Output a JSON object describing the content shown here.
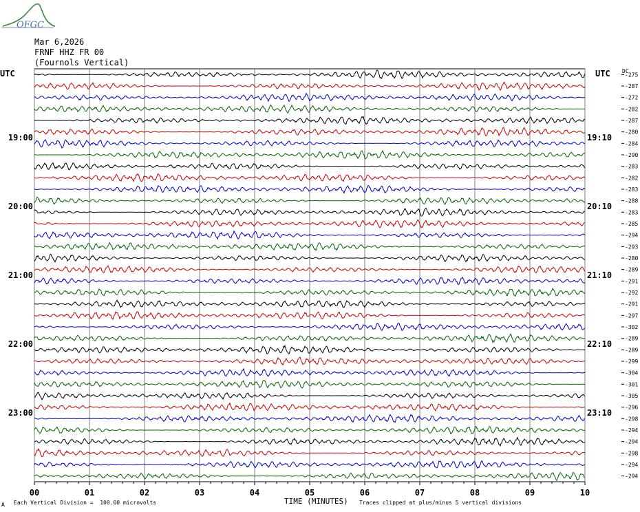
{
  "logo_text": "OFGC",
  "header": {
    "date": "Mar 6,2026",
    "station": "FRNF HHZ FR 00",
    "component": "(Fournols Vertical)"
  },
  "left_axis_label": "UTC",
  "right_axis_label": "UTC",
  "dc_label": "DC",
  "footer": {
    "scale_note": "Each Vertical Division =  100.00 microvolts",
    "xlabel": "TIME (MINUTES)",
    "clip_note": "Traces clipped at plus/minus 5 vertical divisions",
    "corner_mark": "A"
  },
  "colors": {
    "trace_cycle": [
      "#000000",
      "#cc0000",
      "#0000cc",
      "#006600"
    ],
    "grid": "#808080"
  },
  "chart_data": {
    "type": "line",
    "title": "",
    "xlabel": "TIME (MINUTES)",
    "ylabel": "",
    "xlim": [
      0,
      10
    ],
    "x_ticks": [
      "00",
      "01",
      "02",
      "03",
      "04",
      "05",
      "06",
      "07",
      "08",
      "09",
      "10"
    ],
    "row_count": 36,
    "left_hour_labels": [
      {
        "row": 6,
        "label": "19:00"
      },
      {
        "row": 12,
        "label": "20:00"
      },
      {
        "row": 18,
        "label": "21:00"
      },
      {
        "row": 24,
        "label": "22:00"
      },
      {
        "row": 30,
        "label": "23:00"
      }
    ],
    "right_hour_labels": [
      {
        "row": 6,
        "label": "19:10"
      },
      {
        "row": 12,
        "label": "20:10"
      },
      {
        "row": 18,
        "label": "21:10"
      },
      {
        "row": 24,
        "label": "22:10"
      },
      {
        "row": 30,
        "label": "23:10"
      }
    ],
    "dc_offsets": [
      "-275",
      "-287",
      "-272",
      "-282",
      "-287",
      "-280",
      "-284",
      "-290",
      "-283",
      "-282",
      "-283",
      "-288",
      "-283",
      "-285",
      "-294",
      "-293",
      "-280",
      "-289",
      "-291",
      "-292",
      "-291",
      "-297",
      "-302",
      "-289",
      "-289",
      "-299",
      "-304",
      "-301",
      "-305",
      "-296",
      "-298",
      "-294",
      "-294",
      "-298",
      "-294",
      "-294"
    ]
  }
}
